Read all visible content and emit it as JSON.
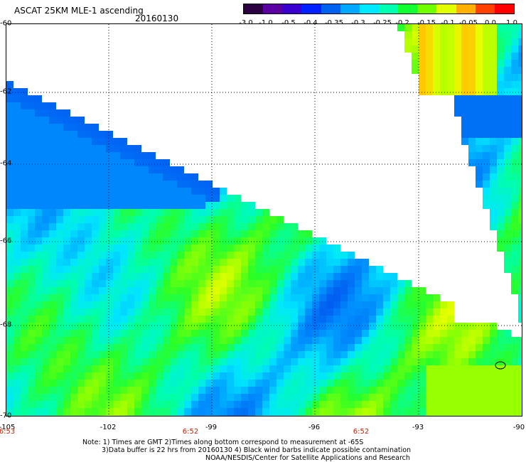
{
  "header": {
    "title": "ASCAT 25KM MLE-1 ascending",
    "date": "20160130"
  },
  "colorbar": {
    "labels": [
      "-3.0",
      "-1.0",
      "-0.5",
      "-0.4",
      "-0.35",
      "-0.3",
      "-0.25",
      "-0.2",
      "-0.15",
      "-0.1",
      "-0.05",
      "0.0",
      "1.0"
    ],
    "colors": [
      "#2a0040",
      "#5a00a0",
      "#3a00d0",
      "#0020ff",
      "#0060f0",
      "#00a8ff",
      "#00e8ff",
      "#00ffb0",
      "#10ff30",
      "#70ff00",
      "#e0ff00",
      "#ffb000",
      "#ff4000",
      "#ff0000"
    ]
  },
  "axes": {
    "lat_labels": [
      "-60",
      "-62",
      "-64",
      "-66",
      "-68",
      "-70"
    ],
    "lon_labels": [
      "-105",
      "-102",
      "-99",
      "-96",
      "-93",
      "-90"
    ],
    "time_labels": [
      "6:53",
      "6:52",
      "6:52"
    ]
  },
  "notes": {
    "line1": "Note: 1) Times are GMT 2)Times along bottom correspond to measurement at -65S",
    "line2": "3)Data buffer is 22 hrs from 20160130 4) Black wind barbs indicate possible contamination",
    "line3": "NOAA/NESDIS/Center for Satellite Applications and Research"
  }
}
